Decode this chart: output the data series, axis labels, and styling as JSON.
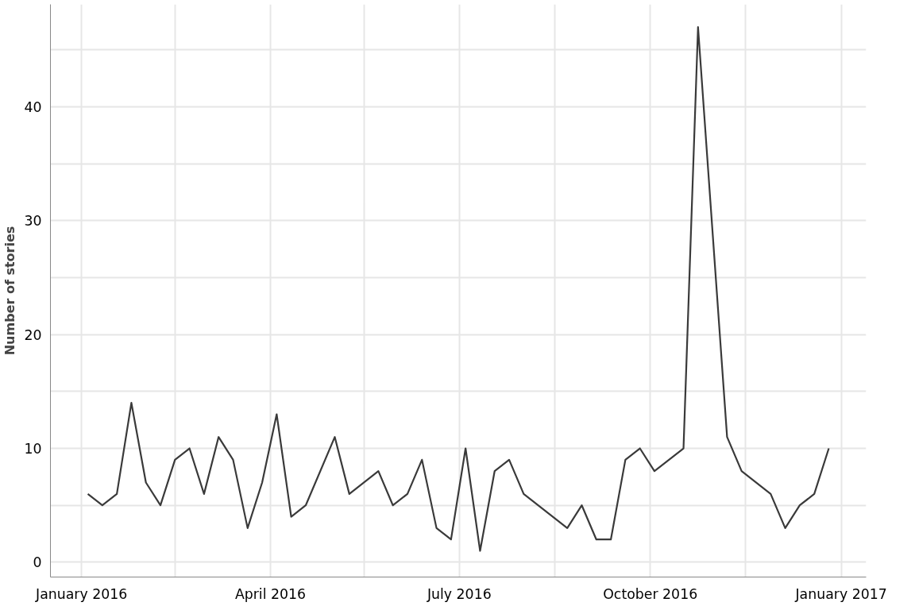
{
  "chart_data": {
    "type": "line",
    "ylabel": "Number of stories",
    "x": [
      "2016-01-04",
      "2016-01-11",
      "2016-01-18",
      "2016-01-25",
      "2016-02-01",
      "2016-02-08",
      "2016-02-15",
      "2016-02-22",
      "2016-02-29",
      "2016-03-07",
      "2016-03-14",
      "2016-03-21",
      "2016-03-28",
      "2016-04-04",
      "2016-04-11",
      "2016-04-18",
      "2016-05-02",
      "2016-05-09",
      "2016-05-23",
      "2016-05-30",
      "2016-06-06",
      "2016-06-13",
      "2016-06-20",
      "2016-06-27",
      "2016-07-04",
      "2016-07-11",
      "2016-07-18",
      "2016-07-25",
      "2016-08-01",
      "2016-08-22",
      "2016-08-29",
      "2016-09-05",
      "2016-09-12",
      "2016-09-19",
      "2016-09-26",
      "2016-10-03",
      "2016-10-17",
      "2016-10-24",
      "2016-11-07",
      "2016-11-14",
      "2016-11-28",
      "2016-12-05",
      "2016-12-12",
      "2016-12-19",
      "2016-12-26"
    ],
    "series": [
      {
        "color": "#3a3a3a",
        "values": [
          6,
          5,
          6,
          14,
          7,
          5,
          9,
          10,
          6,
          11,
          9,
          3,
          7,
          13,
          4,
          5,
          11,
          6,
          8,
          5,
          6,
          9,
          3,
          2,
          10,
          1,
          8,
          9,
          6,
          3,
          5,
          2,
          2,
          9,
          10,
          8,
          10,
          47,
          11,
          8,
          6,
          3,
          5,
          6,
          10
        ]
      }
    ],
    "xlim": [
      "2015-12-17",
      "2017-01-13"
    ],
    "xticks": [
      {
        "value": "2016-01-01",
        "label": "January 2016"
      },
      {
        "value": "2016-02-15",
        "label": null
      },
      {
        "value": "2016-04-01",
        "label": "April 2016"
      },
      {
        "value": "2016-05-16",
        "label": null
      },
      {
        "value": "2016-07-01",
        "label": "July 2016"
      },
      {
        "value": "2016-08-16",
        "label": null
      },
      {
        "value": "2016-10-01",
        "label": "October 2016"
      },
      {
        "value": "2016-11-16",
        "label": null
      },
      {
        "value": "2017-01-01",
        "label": "January 2017"
      }
    ],
    "ylim": [
      -1.3,
      49
    ],
    "yticks": [
      0,
      {
        "value": 5,
        "label": null
      },
      10,
      {
        "value": 15,
        "label": null
      },
      20,
      {
        "value": 25,
        "label": null
      },
      30,
      {
        "value": 35,
        "label": null
      },
      40,
      {
        "value": 45,
        "label": null
      }
    ],
    "grid": true,
    "marker": "none",
    "line_style": "solid"
  }
}
